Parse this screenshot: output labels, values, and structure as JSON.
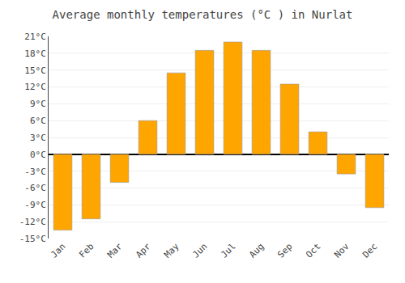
{
  "chart_data": {
    "type": "bar",
    "title": "Average monthly temperatures (°C ) in Nurlat",
    "categories": [
      "Jan",
      "Feb",
      "Mar",
      "Apr",
      "May",
      "Jun",
      "Jul",
      "Aug",
      "Sep",
      "Oct",
      "Nov",
      "Dec"
    ],
    "values": [
      -13.5,
      -11.5,
      -5.0,
      6.0,
      14.5,
      18.5,
      20.0,
      18.5,
      12.5,
      4.0,
      -3.5,
      -9.5
    ],
    "color": "#FFA500",
    "ylim": [
      -15,
      21
    ],
    "yticks": [
      {
        "value": -15,
        "label": "-15°C"
      },
      {
        "value": -12,
        "label": "-12°C"
      },
      {
        "value": -9,
        "label": "-9°C"
      },
      {
        "value": -6,
        "label": "-6°C"
      },
      {
        "value": -3,
        "label": "-3°C"
      },
      {
        "value": 0,
        "label": "0°C"
      },
      {
        "value": 3,
        "label": "3°C"
      },
      {
        "value": 6,
        "label": "6°C"
      },
      {
        "value": 9,
        "label": "9°C"
      },
      {
        "value": 12,
        "label": "12°C"
      },
      {
        "value": 15,
        "label": "15°C"
      },
      {
        "value": 18,
        "label": "18°C"
      },
      {
        "value": 21,
        "label": "21°C"
      }
    ],
    "grid": true
  }
}
